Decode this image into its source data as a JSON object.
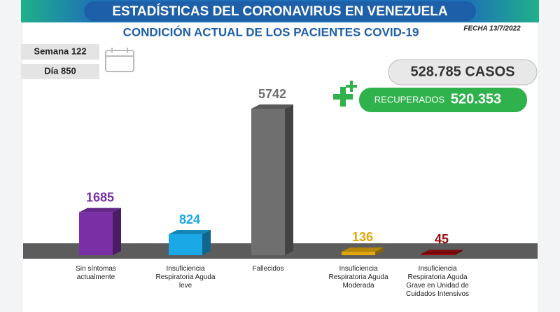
{
  "title": "ESTADÍSTICAS DEL CORONAVIRUS EN VENEZUELA",
  "subtitle": "CONDICIÓN ACTUAL DE LOS PACIENTES COVID-19",
  "date": "FECHA 13/7/2022",
  "week": "Semana 122",
  "day": "Día 850",
  "cases": "528.785 CASOS",
  "recovered_label": "RECUPERADOS",
  "recovered_value": "520.353",
  "chart_data": {
    "type": "bar",
    "categories": [
      "Sin síntomas actualmente",
      "Insuficiencia Respiratoria Aguda leve",
      "Fallecidos",
      "Insuficiencia Respiratoria Aguda Moderada",
      "Insuficiencia Respiratoria Aguda Grave en Unidad de Cuidados Intensivos"
    ],
    "values": [
      1685,
      824,
      5742,
      136,
      45
    ],
    "colors": [
      "#7a2fa6",
      "#1ba8e6",
      "#6f6f6f",
      "#e0a60a",
      "#9a0a0a"
    ]
  }
}
